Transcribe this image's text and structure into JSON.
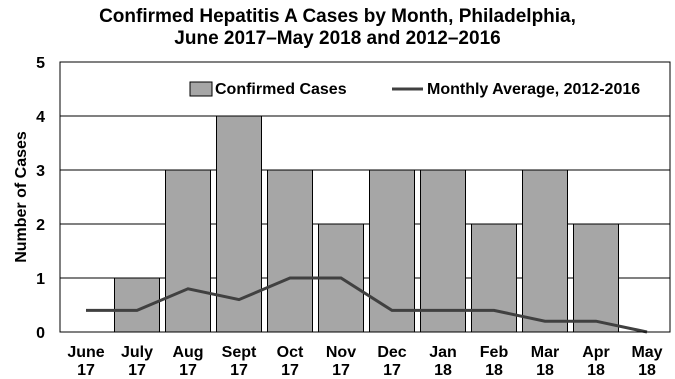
{
  "chart_data": {
    "type": "bar",
    "title_line1": "Confirmed Hepatitis A Cases by Month, Philadelphia,",
    "title_line2": "June 2017–May 2018 and 2012–2016",
    "ylabel": "Number of Cases",
    "xlabel": "",
    "ylim": [
      0,
      5
    ],
    "yticks": [
      0,
      1,
      2,
      3,
      4,
      5
    ],
    "grid": true,
    "legend_position": "top",
    "categories": [
      [
        "June",
        "17"
      ],
      [
        "July",
        "17"
      ],
      [
        "Aug",
        "17"
      ],
      [
        "Sept",
        "17"
      ],
      [
        "Oct",
        "17"
      ],
      [
        "Nov",
        "17"
      ],
      [
        "Dec",
        "17"
      ],
      [
        "Jan",
        "18"
      ],
      [
        "Feb",
        "18"
      ],
      [
        "Mar",
        "18"
      ],
      [
        "Apr",
        "18"
      ],
      [
        "May",
        "18"
      ]
    ],
    "series": [
      {
        "name": "Confirmed Cases",
        "type": "bar",
        "color": "#a6a6a6",
        "values": [
          0,
          1,
          3,
          4,
          3,
          2,
          3,
          3,
          2,
          3,
          2,
          0
        ]
      },
      {
        "name": "Monthly Average, 2012-2016",
        "type": "line",
        "color": "#404040",
        "values": [
          0.4,
          0.4,
          0.8,
          0.6,
          1.0,
          1.0,
          0.4,
          0.4,
          0.4,
          0.2,
          0.2,
          0.0
        ]
      }
    ]
  }
}
